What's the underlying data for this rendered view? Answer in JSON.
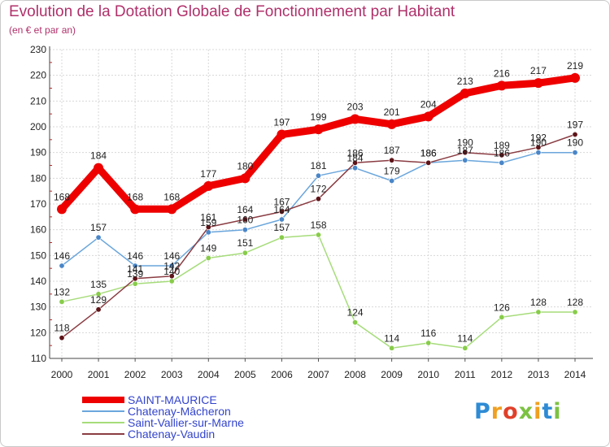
{
  "header": {
    "title": "Evolution de la Dotation Globale de Fonctionnement par Habitant",
    "subtitle": "(en € et par an)"
  },
  "chart_data": {
    "type": "line",
    "title": "Evolution de la Dotation Globale de Fonctionnement par Habitant",
    "subtitle": "(en € et par an)",
    "xlabel": "",
    "ylabel": "",
    "x": [
      "2000",
      "2001",
      "2002",
      "2003",
      "2004",
      "2005",
      "2006",
      "2007",
      "2008",
      "2009",
      "2010",
      "2011",
      "2012",
      "2013",
      "2014"
    ],
    "ylim": [
      110,
      230
    ],
    "yticks": [
      110,
      120,
      130,
      140,
      150,
      160,
      170,
      180,
      190,
      200,
      210,
      220,
      230
    ],
    "grid": true,
    "legend_position": "bottom-left",
    "series": [
      {
        "name": "SAINT-MAURICE",
        "color": "#ee0000",
        "marker": "#ee0000",
        "emphasis": true,
        "values": [
          168,
          184,
          168,
          168,
          177,
          180,
          197,
          199,
          203,
          201,
          204,
          213,
          216,
          217,
          219
        ],
        "labels": [
          "168",
          "184",
          "168",
          "168",
          "177",
          "180",
          "197",
          "199",
          "203",
          "201",
          "204",
          "213",
          "216",
          "217",
          "219"
        ]
      },
      {
        "name": "Chatenay-Mâcheron",
        "color": "#6aa6dc",
        "marker": "#4a86c8",
        "emphasis": false,
        "values": [
          146,
          157,
          146,
          146,
          159,
          160,
          164,
          181,
          184,
          179,
          186,
          187,
          186,
          190,
          190
        ],
        "labels": [
          "146",
          "157",
          "146",
          "146",
          "159",
          "160",
          "164",
          "181",
          "184",
          "179",
          "186",
          "187",
          "186",
          "190",
          "190"
        ]
      },
      {
        "name": "Saint-Vallier-sur-Marne",
        "color": "#a6dc7a",
        "marker": "#88cc4a",
        "emphasis": false,
        "values": [
          132,
          135,
          139,
          140,
          149,
          151,
          157,
          158,
          124,
          114,
          116,
          114,
          126,
          128,
          128
        ],
        "labels": [
          "132",
          "135",
          "139",
          "140",
          "149",
          "151",
          "157",
          "158",
          "124",
          "114",
          "116",
          "114",
          "126",
          "128",
          "128"
        ]
      },
      {
        "name": "Chatenay-Vaudin",
        "color": "#8a3c42",
        "marker": "#5e1418",
        "emphasis": false,
        "values": [
          118,
          129,
          141,
          142,
          161,
          164,
          167,
          172,
          186,
          187,
          186,
          190,
          189,
          192,
          197
        ],
        "labels": [
          "118",
          "129",
          "141",
          "142",
          "161",
          "164",
          "167",
          "172",
          "186",
          "187",
          "186",
          "190",
          "189",
          "192",
          "197"
        ]
      }
    ]
  },
  "logo": {
    "letters": [
      "P",
      "r",
      "o",
      "x",
      "i",
      "t",
      "i"
    ],
    "colors": [
      "#2e8bd4",
      "#f0a020",
      "#e0402a",
      "#7cc242",
      "#f0a020",
      "#2e8bd4",
      "#7cc242"
    ]
  }
}
